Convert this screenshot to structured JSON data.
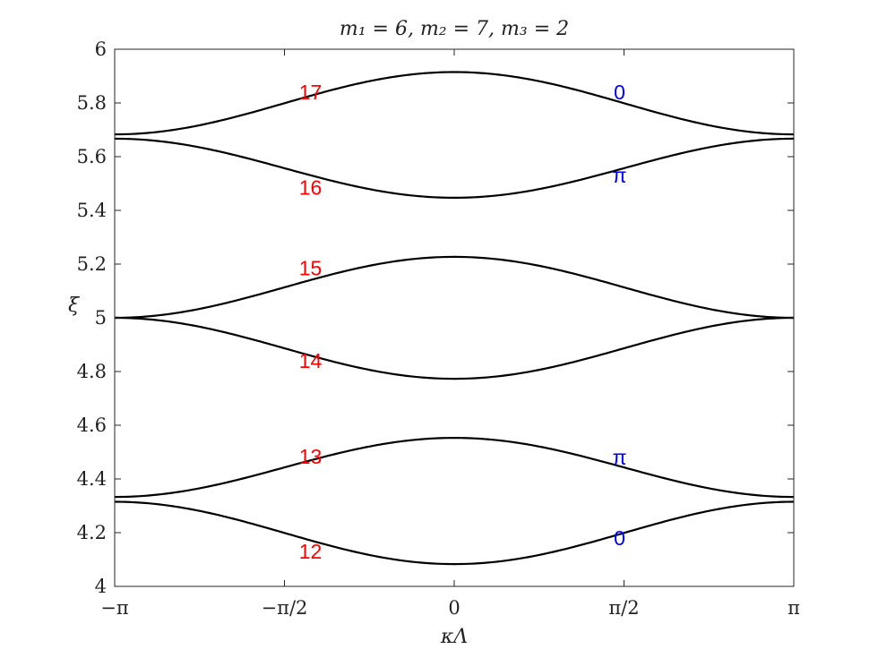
{
  "chart_data": {
    "type": "line",
    "title": "m₁ = 6, m₂ = 7, m₃ = 2",
    "xlabel": "κΛ",
    "ylabel": "ξ",
    "xlim": [
      -3.14159,
      3.14159
    ],
    "ylim": [
      4,
      6
    ],
    "xticks": [
      {
        "value": -3.14159,
        "label": "−π"
      },
      {
        "value": -1.5708,
        "label": "−π/2"
      },
      {
        "value": 0,
        "label": "0"
      },
      {
        "value": 1.5708,
        "label": "π/2"
      },
      {
        "value": 3.14159,
        "label": "π"
      }
    ],
    "yticks": [
      {
        "value": 4,
        "label": "4"
      },
      {
        "value": 4.2,
        "label": "4.2"
      },
      {
        "value": 4.4,
        "label": "4.4"
      },
      {
        "value": 4.6,
        "label": "4.6"
      },
      {
        "value": 4.8,
        "label": "4.8"
      },
      {
        "value": 5,
        "label": "5"
      },
      {
        "value": 5.2,
        "label": "5.2"
      },
      {
        "value": 5.4,
        "label": "5.4"
      },
      {
        "value": 5.6,
        "label": "5.6"
      },
      {
        "value": 5.8,
        "label": "5.8"
      },
      {
        "value": 6,
        "label": "6"
      }
    ],
    "grid": false,
    "series": [
      {
        "band": 12,
        "edge": 4.315,
        "center": 4.083,
        "color": "#000000"
      },
      {
        "band": 13,
        "edge": 4.333,
        "center": 4.553,
        "color": "#000000"
      },
      {
        "band": 14,
        "edge": 5.0,
        "center": 4.773,
        "color": "#000000"
      },
      {
        "band": 15,
        "edge": 5.0,
        "center": 5.227,
        "color": "#000000"
      },
      {
        "band": 16,
        "edge": 5.667,
        "center": 5.447,
        "color": "#000000"
      },
      {
        "band": 17,
        "edge": 5.683,
        "center": 5.915,
        "color": "#000000"
      }
    ],
    "annotations": [
      {
        "text": "17",
        "x": -1.33,
        "y": 5.84,
        "color": "#ff0000"
      },
      {
        "text": "16",
        "x": -1.33,
        "y": 5.485,
        "color": "#ff0000"
      },
      {
        "text": "15",
        "x": -1.33,
        "y": 5.185,
        "color": "#ff0000"
      },
      {
        "text": "14",
        "x": -1.33,
        "y": 4.84,
        "color": "#ff0000"
      },
      {
        "text": "13",
        "x": -1.33,
        "y": 4.483,
        "color": "#ff0000"
      },
      {
        "text": "12",
        "x": -1.33,
        "y": 4.13,
        "color": "#ff0000"
      },
      {
        "text": "0",
        "x": 1.53,
        "y": 5.84,
        "color": "#0000ff"
      },
      {
        "text": "π",
        "x": 1.53,
        "y": 5.53,
        "color": "#0000ff"
      },
      {
        "text": "π",
        "x": 1.53,
        "y": 4.48,
        "color": "#0000ff"
      },
      {
        "text": "0",
        "x": 1.53,
        "y": 4.18,
        "color": "#0000ff"
      }
    ]
  }
}
